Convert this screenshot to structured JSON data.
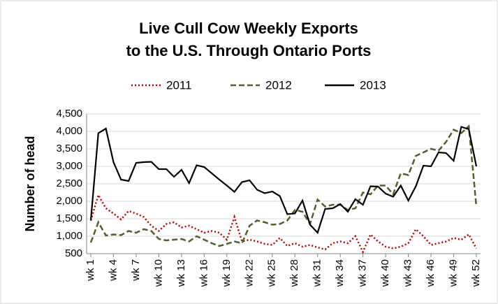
{
  "chart_data": {
    "type": "line",
    "title": [
      "Live Cull Cow Weekly Exports",
      "to the U.S. Through Ontario Ports"
    ],
    "ylabel": "Number of head",
    "categories": [
      "wk 1",
      null,
      null,
      "wk 4",
      null,
      null,
      "wk 7",
      null,
      null,
      "wk 10",
      null,
      null,
      "wk 13",
      null,
      null,
      "wk 16",
      null,
      null,
      "wk 19",
      null,
      null,
      "wk 22",
      null,
      null,
      "wk 25",
      null,
      null,
      "wk 28",
      null,
      null,
      "wk 31",
      null,
      null,
      "wk 34",
      null,
      null,
      "wk 37",
      null,
      null,
      "wk 40",
      null,
      null,
      "wk 43",
      null,
      null,
      "wk 46",
      null,
      null,
      "wk 49",
      null,
      null,
      "wk 52"
    ],
    "series": [
      {
        "name": "2011",
        "color": "#c00000",
        "dash": "dotted",
        "values": [
          1450,
          2180,
          1800,
          1650,
          1480,
          1720,
          1650,
          1550,
          1300,
          1150,
          1350,
          1400,
          1250,
          1300,
          1200,
          1100,
          1150,
          1100,
          900,
          1550,
          850,
          900,
          850,
          780,
          750,
          950,
          720,
          800,
          700,
          750,
          680,
          620,
          800,
          850,
          800,
          1000,
          550,
          1050,
          850,
          700,
          650,
          700,
          800,
          1200,
          1000,
          750,
          800,
          850,
          950,
          900,
          1050,
          650
        ]
      },
      {
        "name": "2012",
        "color": "#4f6228",
        "dash": "dashed",
        "values": [
          820,
          1400,
          1020,
          1050,
          1030,
          1150,
          1100,
          1200,
          1150,
          920,
          880,
          900,
          920,
          850,
          1000,
          900,
          800,
          720,
          780,
          850,
          800,
          1300,
          1450,
          1400,
          1330,
          1350,
          1450,
          1750,
          1700,
          1350,
          2050,
          1850,
          1900,
          1900,
          1750,
          1800,
          2250,
          2200,
          2450,
          2450,
          2200,
          2800,
          2750,
          3300,
          3400,
          3500,
          3450,
          3700,
          4050,
          3950,
          4150,
          1850
        ]
      },
      {
        "name": "2013",
        "color": "#000000",
        "dash": "solid",
        "values": [
          1450,
          3950,
          4080,
          3120,
          2620,
          2580,
          3100,
          3120,
          3130,
          2920,
          2920,
          2700,
          2900,
          2520,
          3030,
          2980,
          2800,
          2620,
          2450,
          2270,
          2550,
          2600,
          2330,
          2230,
          2280,
          2150,
          1630,
          1650,
          2020,
          1330,
          1100,
          1780,
          1800,
          1920,
          1700,
          2060,
          1900,
          2430,
          2420,
          2220,
          2130,
          2450,
          2020,
          2430,
          3020,
          3000,
          3400,
          3380,
          3160,
          4130,
          4060,
          3000
        ]
      }
    ],
    "ylim": [
      500,
      4500
    ],
    "yticks": [
      500,
      {
        "value": 1000,
        "label": "1,000"
      },
      {
        "value": 1500,
        "label": "1,500"
      },
      {
        "value": 2000,
        "label": "2,000"
      },
      {
        "value": 2500,
        "label": "2,500"
      },
      {
        "value": 3000,
        "label": "3,000"
      },
      {
        "value": 3500,
        "label": "3,500"
      },
      {
        "value": 4000,
        "label": "4,000"
      },
      {
        "value": 4500,
        "label": "4,500"
      }
    ],
    "grid": true,
    "legend": "top"
  }
}
